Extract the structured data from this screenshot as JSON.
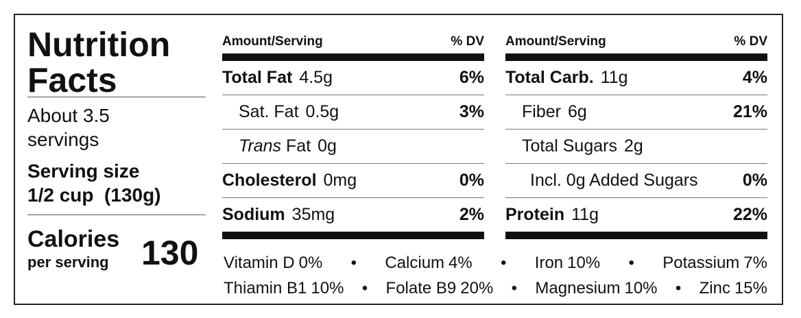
{
  "header": {
    "title_line1": "Nutrition",
    "title_line2": "Facts",
    "servings_line1": "About 3.5",
    "servings_line2": "servings",
    "serving_size_label": "Serving size",
    "serving_size_value": "1/2 cup  (130g)",
    "calories_label": "Calories",
    "calories_sub": "per serving",
    "calories_value": "130"
  },
  "left": {
    "col_amount": "Amount/Serving",
    "col_dv": "% DV",
    "rows": [
      {
        "name": "Total Fat",
        "amount": "4.5g",
        "dv": "6%"
      },
      {
        "name": "Sat. Fat",
        "amount": "0.5g",
        "dv": "3%"
      },
      {
        "name_italic": "Trans",
        "name": "Fat",
        "amount": "0g"
      },
      {
        "name": "Cholesterol",
        "amount": "0mg",
        "dv": "0%"
      },
      {
        "name": "Sodium",
        "amount": "35mg",
        "dv": "2%"
      }
    ]
  },
  "right": {
    "col_amount": "Amount/Serving",
    "col_dv": "% DV",
    "rows": [
      {
        "name": "Total Carb.",
        "amount": "11g",
        "dv": "4%"
      },
      {
        "name": "Fiber",
        "amount": "6g",
        "dv": "21%"
      },
      {
        "name": "Total Sugars",
        "amount": "2g"
      },
      {
        "name": "Incl. 0g Added Sugars",
        "dv": "0%"
      },
      {
        "name": "Protein",
        "amount": "11g",
        "dv": "22%"
      }
    ]
  },
  "vitamins": [
    [
      {
        "name": "Vitamin D",
        "dv": "0%"
      },
      {
        "name": "Calcium",
        "dv": "4%"
      },
      {
        "name": "Iron",
        "dv": "10%"
      },
      {
        "name": "Potassium",
        "dv": "7%"
      }
    ],
    [
      {
        "name": "Thiamin B1",
        "dv": "10%"
      },
      {
        "name": "Folate B9",
        "dv": "20%"
      },
      {
        "name": "Magnesium",
        "dv": "10%"
      },
      {
        "name": "Zinc",
        "dv": "15%"
      }
    ]
  ]
}
